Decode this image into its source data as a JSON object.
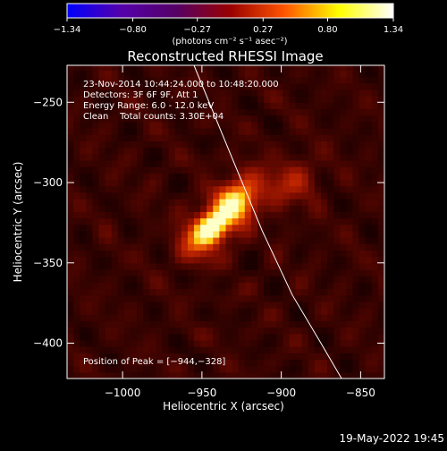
{
  "chart_data": {
    "type": "heatmap",
    "title": "Reconstructed RHESSI Image",
    "xlabel": "Heliocentric X (arcsec)",
    "ylabel": "Heliocentric Y (arcsec)",
    "xlim": [
      -1035,
      -835
    ],
    "ylim": [
      -422,
      -227
    ],
    "x_ticks": [
      -1000,
      -950,
      -900,
      -850
    ],
    "x_tick_labels": [
      "−1000",
      "−950",
      "−900",
      "−850"
    ],
    "y_ticks": [
      -250,
      -300,
      -350,
      -400
    ],
    "y_tick_labels": [
      "−250",
      "−300",
      "−350",
      "−400"
    ],
    "colorbar": {
      "min": -1.34,
      "max": 1.34,
      "ticks": [
        -1.34,
        -0.8,
        -0.27,
        0.27,
        0.8,
        1.34
      ],
      "tick_labels": [
        "−1.34",
        "−0.80",
        "−0.27",
        "0.27",
        "0.80",
        "1.34"
      ],
      "units_label": "(photons cm⁻² s⁻¹ asec⁻²)",
      "colormap": [
        "#0000ff",
        "#5500aa",
        "#550066",
        "#990000",
        "#ff5500",
        "#ffff00",
        "#ffffff"
      ]
    },
    "annotations": [
      "23-Nov-2014 10:44:24.000 to 10:48:20.000",
      "Detectors: 3F 6F 9F, Att 1",
      "Energy Range: 6.0 - 12.0 keV",
      "Clean    Total counts: 3.30E+04"
    ],
    "peak_label": "Position of Peak = [−944,−328]",
    "peak": [
      -944,
      -328
    ],
    "sources": [
      {
        "x": -944,
        "y": -328,
        "intensity": 1.34
      },
      {
        "x": -925,
        "y": -308,
        "intensity": 0.8
      },
      {
        "x": -893,
        "y": -300,
        "intensity": 0.42
      }
    ],
    "limb_curve": [
      [
        -955,
        -227
      ],
      [
        -933,
        -280
      ],
      [
        -912,
        -330
      ],
      [
        -893,
        -370
      ],
      [
        -875,
        -400
      ],
      [
        -862,
        -422
      ]
    ],
    "grid": false
  },
  "footer": {
    "timestamp": "19-May-2022 19:45"
  },
  "colors": {
    "background": "#000000",
    "text": "#ffffff",
    "limb": "#ffffff"
  }
}
